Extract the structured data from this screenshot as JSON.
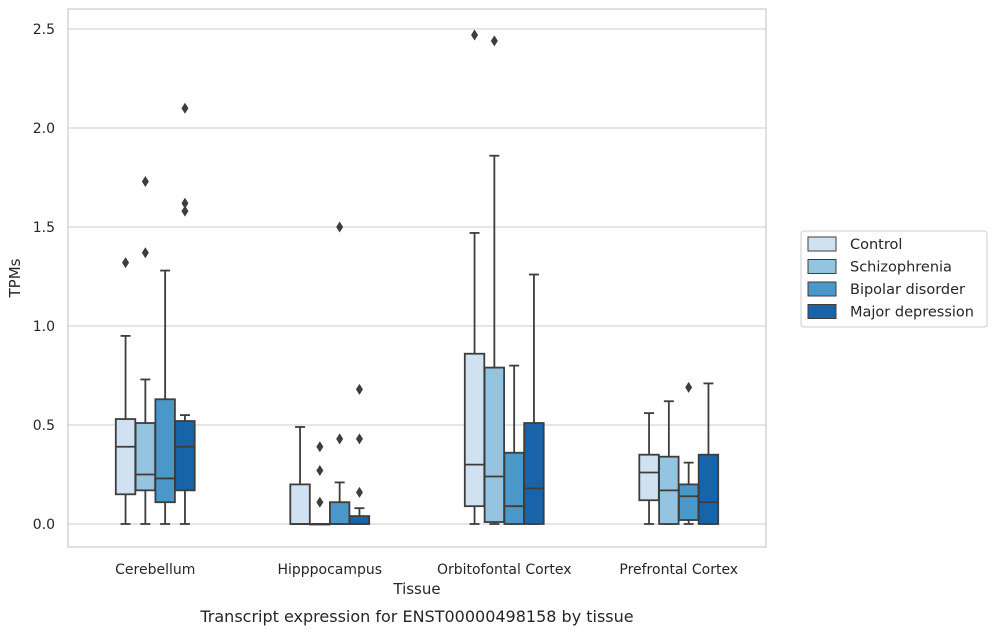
{
  "chart_data": {
    "type": "box",
    "title": "",
    "caption": "Transcript expression for ENST00000498158 by tissue",
    "xlabel": "Tissue",
    "ylabel": "TPMs",
    "ylim": [
      -0.12,
      2.6
    ],
    "yticks": [
      "0.0",
      "0.5",
      "1.0",
      "1.5",
      "2.0",
      "2.5"
    ],
    "grid": "horizontal",
    "legend_position": "right",
    "categories": [
      "Cerebellum",
      "Hipppocampus",
      "Orbitofontal Cortex",
      "Prefrontal Cortex"
    ],
    "series": [
      {
        "name": "Control",
        "color": "#d0e2f2",
        "boxes": [
          {
            "whisker_low": 0.0,
            "q1": 0.15,
            "median": 0.39,
            "q3": 0.53,
            "whisker_high": 0.95,
            "outliers": [
              1.32
            ]
          },
          {
            "whisker_low": 0.0,
            "q1": 0.0,
            "median": 0.0,
            "q3": 0.2,
            "whisker_high": 0.49,
            "outliers": []
          },
          {
            "whisker_low": 0.0,
            "q1": 0.09,
            "median": 0.3,
            "q3": 0.86,
            "whisker_high": 1.47,
            "outliers": [
              2.47
            ]
          },
          {
            "whisker_low": 0.0,
            "q1": 0.12,
            "median": 0.26,
            "q3": 0.35,
            "whisker_high": 0.56,
            "outliers": []
          }
        ]
      },
      {
        "name": "Schizophrenia",
        "color": "#94c4df",
        "boxes": [
          {
            "whisker_low": 0.0,
            "q1": 0.17,
            "median": 0.25,
            "q3": 0.51,
            "whisker_high": 0.73,
            "outliers": [
              1.37,
              1.73
            ]
          },
          {
            "whisker_low": 0.0,
            "q1": 0.0,
            "median": 0.0,
            "q3": 0.0,
            "whisker_high": 0.0,
            "outliers": [
              0.11,
              0.27,
              0.39
            ]
          },
          {
            "whisker_low": 0.0,
            "q1": 0.01,
            "median": 0.24,
            "q3": 0.79,
            "whisker_high": 1.86,
            "outliers": [
              2.44
            ]
          },
          {
            "whisker_low": 0.0,
            "q1": 0.0,
            "median": 0.17,
            "q3": 0.34,
            "whisker_high": 0.62,
            "outliers": []
          }
        ]
      },
      {
        "name": "Bipolar disorder",
        "color": "#4a98c9",
        "boxes": [
          {
            "whisker_low": 0.0,
            "q1": 0.11,
            "median": 0.23,
            "q3": 0.63,
            "whisker_high": 1.28,
            "outliers": []
          },
          {
            "whisker_low": 0.0,
            "q1": 0.0,
            "median": 0.0,
            "q3": 0.11,
            "whisker_high": 0.21,
            "outliers": [
              0.43,
              1.5
            ]
          },
          {
            "whisker_low": 0.0,
            "q1": 0.0,
            "median": 0.09,
            "q3": 0.36,
            "whisker_high": 0.8,
            "outliers": []
          },
          {
            "whisker_low": 0.0,
            "q1": 0.02,
            "median": 0.14,
            "q3": 0.2,
            "whisker_high": 0.31,
            "outliers": [
              0.69
            ]
          }
        ]
      },
      {
        "name": "Major depression",
        "color": "#1764ab",
        "boxes": [
          {
            "whisker_low": 0.0,
            "q1": 0.17,
            "median": 0.39,
            "q3": 0.52,
            "whisker_high": 0.55,
            "outliers": [
              1.58,
              1.62,
              2.1
            ]
          },
          {
            "whisker_low": 0.0,
            "q1": 0.0,
            "median": 0.0,
            "q3": 0.04,
            "whisker_high": 0.08,
            "outliers": [
              0.16,
              0.43,
              0.68
            ]
          },
          {
            "whisker_low": 0.0,
            "q1": 0.0,
            "median": 0.18,
            "q3": 0.51,
            "whisker_high": 1.26,
            "outliers": []
          },
          {
            "whisker_low": 0.0,
            "q1": 0.0,
            "median": 0.11,
            "q3": 0.35,
            "whisker_high": 0.71,
            "outliers": []
          }
        ]
      }
    ]
  }
}
